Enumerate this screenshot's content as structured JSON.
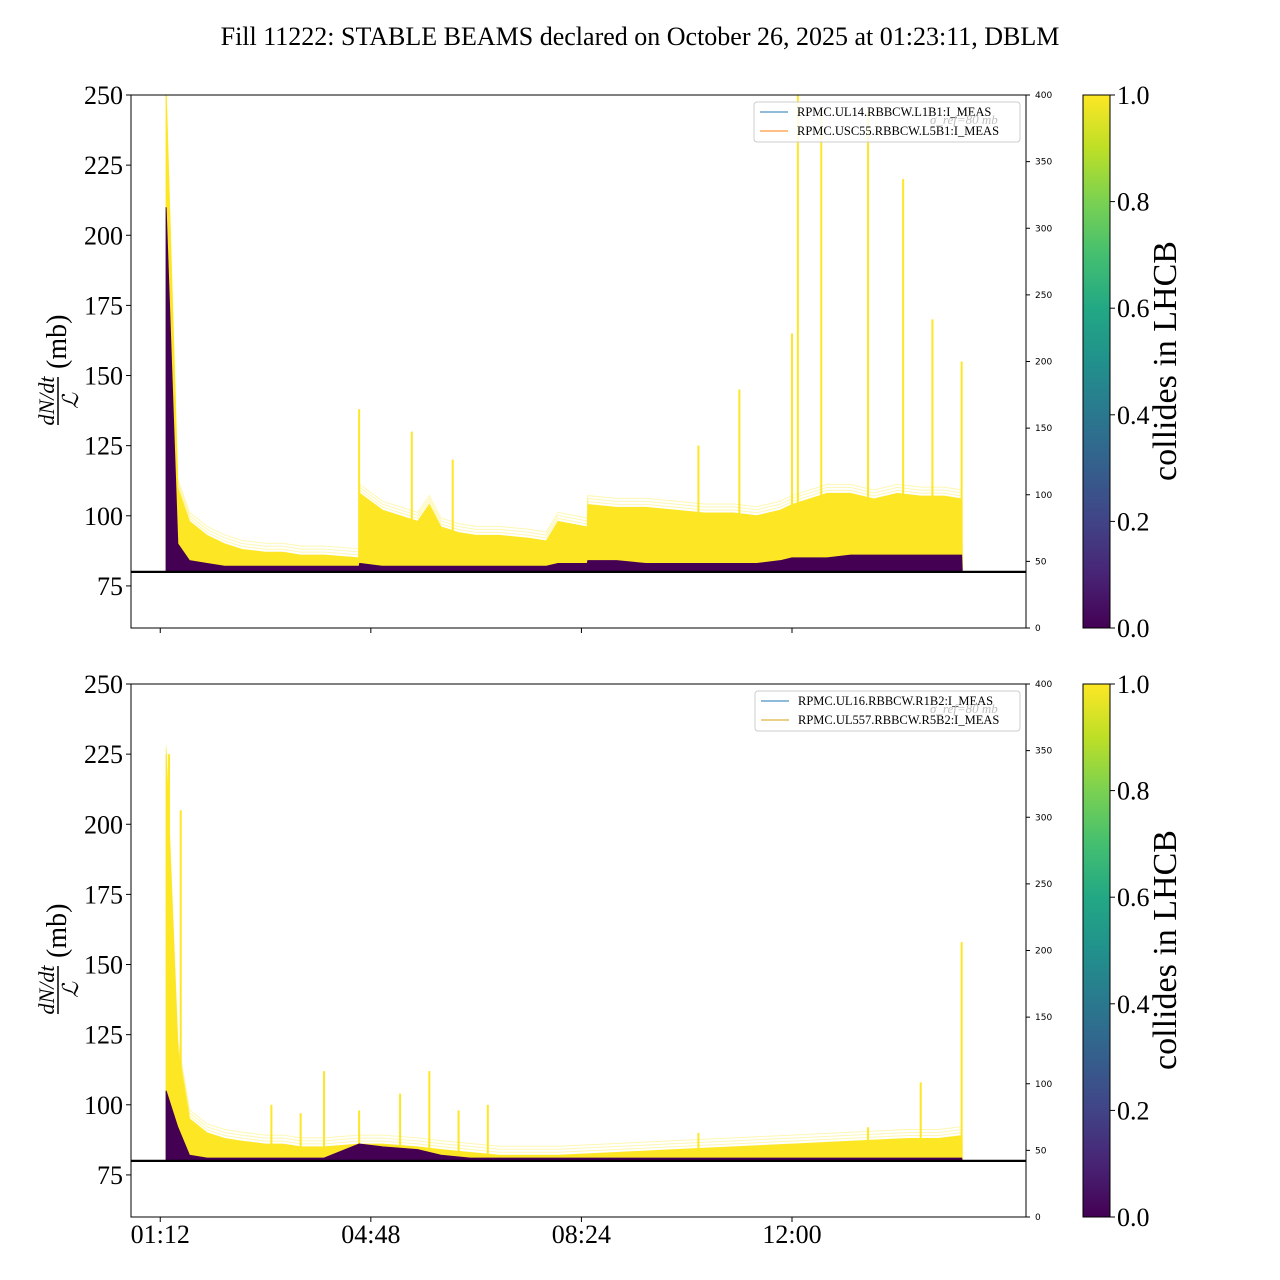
{
  "figure": {
    "title": "Fill 11222: STABLE BEAMS declared on October 26, 2025 at 01:23:11, DBLM"
  },
  "colors": {
    "collides": "#fde725",
    "non_colliding": "#440154",
    "reference_line": "#000000",
    "legend_line_1": "#1f77b4",
    "legend_line_2": "#ff7f0e",
    "legend_line_2b": "#d4a017"
  },
  "chart_data": [
    {
      "type": "line",
      "panel": "top",
      "ylabel_fraction_numerator": "dN/dt",
      "ylabel_fraction_denominator": "ℒ",
      "ylabel_unit": "(mb)",
      "ylim": [
        60,
        250
      ],
      "yticks": [
        75,
        100,
        125,
        150,
        175,
        200,
        225,
        250
      ],
      "secondary_ylim": [
        0,
        400
      ],
      "secondary_yticks": [
        0,
        50,
        100,
        150,
        200,
        250,
        300,
        350,
        400
      ],
      "x_hours": [
        0.3,
        0.5,
        0.7,
        1.0,
        1.3,
        1.6,
        2.0,
        2.3,
        2.6,
        3.0,
        3.6,
        3.61,
        4.0,
        4.6,
        4.8,
        5.0,
        5.3,
        5.6,
        6.0,
        6.5,
        6.8,
        7.0,
        7.5,
        7.51,
        8.0,
        8.5,
        9.0,
        9.5,
        10.0,
        10.4,
        10.8,
        11.0,
        11.3,
        11.6,
        12.0,
        12.4,
        12.8,
        13.2,
        13.6,
        13.9,
        13.91
      ],
      "series": [
        {
          "name": "collides (upper envelope)",
          "values": [
            250,
            110,
            98,
            93,
            90,
            88,
            87,
            87,
            86,
            86,
            85,
            108,
            102,
            98,
            104,
            96,
            94,
            93,
            93,
            92,
            91,
            98,
            96,
            104,
            103,
            103,
            102,
            101,
            101,
            100,
            102,
            104,
            106,
            108,
            108,
            106,
            108,
            107,
            107,
            106,
            80
          ],
          "spikes": [
            {
              "x": 3.6,
              "y": 138
            },
            {
              "x": 4.5,
              "y": 130
            },
            {
              "x": 5.2,
              "y": 120
            },
            {
              "x": 9.4,
              "y": 125
            },
            {
              "x": 10.1,
              "y": 145
            },
            {
              "x": 11.0,
              "y": 165
            },
            {
              "x": 11.1,
              "y": 250
            },
            {
              "x": 11.5,
              "y": 245
            },
            {
              "x": 12.3,
              "y": 245
            },
            {
              "x": 12.9,
              "y": 220
            },
            {
              "x": 13.4,
              "y": 170
            },
            {
              "x": 13.9,
              "y": 155
            }
          ]
        },
        {
          "name": "non-colliding (lower band)",
          "values": [
            210,
            90,
            84,
            83,
            82,
            82,
            82,
            82,
            82,
            82,
            82,
            83,
            82,
            82,
            82,
            82,
            82,
            82,
            82,
            82,
            82,
            83,
            83,
            84,
            84,
            83,
            83,
            83,
            83,
            83,
            84,
            85,
            85,
            85,
            86,
            86,
            86,
            86,
            86,
            86,
            80
          ]
        }
      ],
      "reference_level": 80,
      "legend": {
        "placement": "top-right",
        "entries": [
          "RPMC.UL14.RBBCW.L1B1:I_MEAS",
          "RPMC.USC55.RBBCW.L5B1:I_MEAS"
        ],
        "overlay_text": "σ_ref=80 mb"
      }
    },
    {
      "type": "line",
      "panel": "bottom",
      "ylabel_fraction_numerator": "dN/dt",
      "ylabel_fraction_denominator": "ℒ",
      "ylabel_unit": "(mb)",
      "ylim": [
        60,
        250
      ],
      "yticks": [
        75,
        100,
        125,
        150,
        175,
        200,
        225,
        250
      ],
      "secondary_ylim": [
        0,
        400
      ],
      "secondary_yticks": [
        0,
        50,
        100,
        150,
        200,
        250,
        300,
        350,
        400
      ],
      "x_hours": [
        0.3,
        0.5,
        0.7,
        1.0,
        1.3,
        1.6,
        2.0,
        2.3,
        2.6,
        3.0,
        3.6,
        4.0,
        4.6,
        5.0,
        5.5,
        6.0,
        7.0,
        8.0,
        9.0,
        10.0,
        11.0,
        12.0,
        13.0,
        13.5,
        13.9,
        13.91
      ],
      "series": [
        {
          "name": "collides (upper envelope)",
          "values": [
            225,
            120,
            95,
            90,
            88,
            87,
            86,
            86,
            85,
            85,
            86,
            86,
            85,
            84,
            83,
            82,
            82,
            83,
            84,
            85,
            86,
            87,
            88,
            88,
            89,
            80
          ],
          "spikes": [
            {
              "x": 0.35,
              "y": 225
            },
            {
              "x": 0.55,
              "y": 205
            },
            {
              "x": 2.1,
              "y": 100
            },
            {
              "x": 2.6,
              "y": 97
            },
            {
              "x": 3.0,
              "y": 112
            },
            {
              "x": 3.6,
              "y": 98
            },
            {
              "x": 4.3,
              "y": 104
            },
            {
              "x": 4.8,
              "y": 112
            },
            {
              "x": 5.3,
              "y": 98
            },
            {
              "x": 5.8,
              "y": 100
            },
            {
              "x": 9.4,
              "y": 90
            },
            {
              "x": 12.3,
              "y": 92
            },
            {
              "x": 13.2,
              "y": 108
            },
            {
              "x": 13.9,
              "y": 158
            }
          ]
        },
        {
          "name": "non-colliding (lower band)",
          "values": [
            105,
            92,
            82,
            81,
            81,
            81,
            81,
            81,
            81,
            81,
            86,
            85,
            84,
            82,
            81,
            81,
            81,
            81,
            81,
            81,
            81,
            81,
            81,
            81,
            81,
            80
          ]
        }
      ],
      "reference_level": 80,
      "legend": {
        "placement": "top-right",
        "entries": [
          "RPMC.UL16.RBBCW.R1B2:I_MEAS",
          "RPMC.UL557.RBBCW.R5B2:I_MEAS"
        ],
        "overlay_text": "σ_ref=80 mb"
      }
    }
  ],
  "x_axis": {
    "xlim_hours": [
      -0.3,
      15.0
    ],
    "tick_hours": [
      0.2,
      3.8,
      7.4,
      11.0
    ],
    "tick_labels": [
      "01:12",
      "04:48",
      "08:24",
      "12:00"
    ]
  },
  "colorbar": {
    "label": "collides in LHCB",
    "range": [
      0.0,
      1.0
    ],
    "ticks": [
      "0.0",
      "0.2",
      "0.4",
      "0.6",
      "0.8",
      "1.0"
    ]
  }
}
